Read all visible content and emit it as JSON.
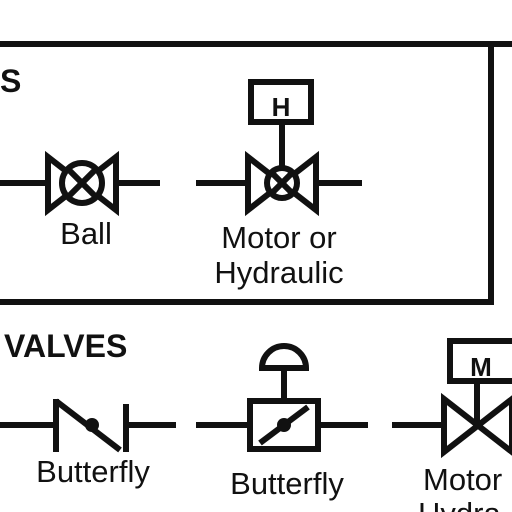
{
  "sections": [
    {
      "header": "S",
      "symbols": [
        {
          "icon": "ball-valve-icon",
          "label_lines": [
            "Ball"
          ]
        },
        {
          "icon": "motor-ball-valve-icon",
          "label_lines": [
            "Motor or",
            "Hydraulic"
          ],
          "actuator_letter": "H"
        }
      ]
    },
    {
      "header": "VALVES",
      "symbols": [
        {
          "icon": "butterfly-valve-icon",
          "label_lines": [
            "Butterfly"
          ]
        },
        {
          "icon": "diaphragm-butterfly-valve-icon",
          "label_lines": [
            "Butterfly"
          ]
        },
        {
          "icon": "motor-gate-valve-icon",
          "label_lines": [
            "Motor",
            "Hydra"
          ],
          "actuator_letter": "M"
        }
      ]
    }
  ],
  "colors": {
    "ink": "#111111",
    "background": "#ffffff"
  }
}
